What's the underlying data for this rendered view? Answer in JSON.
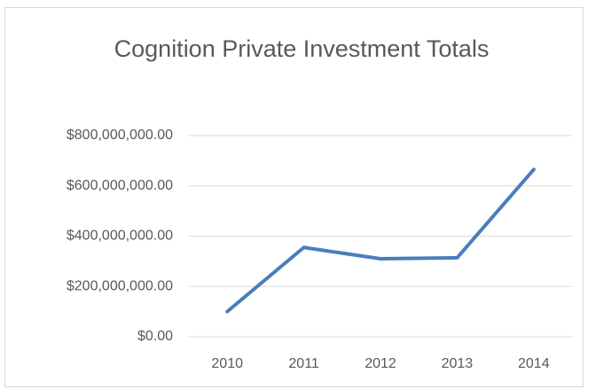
{
  "chart_data": {
    "type": "line",
    "title": "Cognition Private Investment Totals",
    "categories": [
      "2010",
      "2011",
      "2012",
      "2013",
      "2014"
    ],
    "series": [
      {
        "name": "Cognition Private Investment Totals",
        "color": "#4a7ebb",
        "values": [
          100000000,
          355000000,
          310000000,
          314000000,
          665000000
        ]
      }
    ],
    "ylim": [
      0,
      800000000
    ],
    "yticks": [
      {
        "value": 0,
        "label": "$0.00"
      },
      {
        "value": 200000000,
        "label": "$200,000,000.00"
      },
      {
        "value": 400000000,
        "label": "$400,000,000.00"
      },
      {
        "value": 600000000,
        "label": "$600,000,000.00"
      },
      {
        "value": 800000000,
        "label": "$800,000,000.00"
      }
    ],
    "grid": true
  }
}
